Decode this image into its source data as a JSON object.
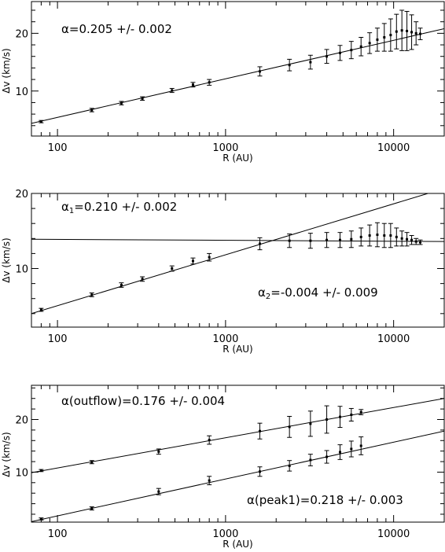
{
  "chart_data": [
    {
      "type": "scatter",
      "title": "",
      "xlabel": "R (AU)",
      "ylabel": "Δv (km/s)",
      "xscale": "log",
      "xlim": [
        70,
        20000
      ],
      "ylim": [
        2.2,
        25.5
      ],
      "xticks": [
        100,
        1000,
        10000
      ],
      "xtick_labels": [
        "100",
        "1000",
        "10000"
      ],
      "yticks": [
        10,
        20
      ],
      "ytick_labels": [
        "10",
        "20"
      ],
      "grid": false,
      "series": [
        {
          "x": [
            80,
            160,
            240,
            320,
            480,
            640,
            800,
            1600,
            2400,
            3200,
            4000,
            4800,
            5600,
            6400,
            7200,
            8000,
            8800,
            9600,
            10400,
            11200,
            12000,
            12800,
            13600,
            14400
          ],
          "y": [
            4.7,
            6.7,
            7.9,
            8.7,
            10.1,
            11.1,
            11.5,
            13.4,
            14.5,
            15.0,
            16.0,
            16.6,
            17.1,
            17.7,
            18.3,
            18.9,
            19.3,
            19.7,
            20.3,
            20.5,
            20.4,
            20.2,
            20.0,
            19.9
          ],
          "yerr": [
            0.2,
            0.3,
            0.3,
            0.3,
            0.35,
            0.4,
            0.5,
            0.8,
            1.0,
            1.2,
            1.2,
            1.3,
            1.5,
            1.6,
            1.8,
            2.0,
            2.4,
            2.8,
            3.0,
            3.5,
            3.4,
            3.0,
            2.0,
            1.0
          ]
        }
      ],
      "fit_lines": [
        {
          "x": [
            70,
            20000
          ],
          "y": [
            4.4,
            20.8
          ]
        }
      ],
      "annotations": [
        {
          "sym": "α",
          "sub": "",
          "text": "=0.205 +/- 0.002"
        }
      ]
    },
    {
      "type": "scatter",
      "title": "",
      "xlabel": "R (AU)",
      "ylabel": "Δv (km/s)",
      "xscale": "log",
      "xlim": [
        70,
        20000
      ],
      "ylim": [
        2.2,
        20
      ],
      "xticks": [
        100,
        1000,
        10000
      ],
      "xtick_labels": [
        "100",
        "1000",
        "10000"
      ],
      "yticks": [
        10,
        20
      ],
      "ytick_labels": [
        "10",
        "20"
      ],
      "grid": false,
      "series": [
        {
          "x": [
            80,
            160,
            240,
            320,
            480,
            640,
            800,
            1600,
            2400,
            3200,
            4000,
            4800,
            5600,
            6400,
            7200,
            8000,
            8800,
            9600,
            10400,
            11200,
            12000,
            12800,
            13600,
            14400
          ],
          "y": [
            4.5,
            6.5,
            7.8,
            8.6,
            10.0,
            11.0,
            11.5,
            13.3,
            13.7,
            13.7,
            13.8,
            13.8,
            13.9,
            14.2,
            14.4,
            14.5,
            14.4,
            14.4,
            14.2,
            14.0,
            13.9,
            13.8,
            13.6,
            13.5
          ],
          "yerr": [
            0.2,
            0.25,
            0.3,
            0.3,
            0.35,
            0.4,
            0.5,
            0.8,
            0.9,
            1.0,
            1.0,
            1.0,
            1.1,
            1.2,
            1.4,
            1.6,
            1.6,
            1.6,
            1.2,
            1.0,
            0.9,
            0.6,
            0.4,
            0.3
          ]
        }
      ],
      "fit_lines": [
        {
          "x": [
            70,
            16000
          ],
          "y": [
            4.0,
            20.0
          ]
        },
        {
          "x": [
            70,
            20000
          ],
          "y": [
            13.9,
            13.6
          ]
        }
      ],
      "annotations": [
        {
          "sym": "α",
          "sub": "1",
          "text": "=0.210 +/- 0.002"
        },
        {
          "sym": "α",
          "sub": "2",
          "text": "=-0.004 +/- 0.009"
        }
      ]
    },
    {
      "type": "scatter",
      "title": "",
      "xlabel": "R (AU)",
      "ylabel": "Δv (km/s)",
      "xscale": "log",
      "xlim": [
        70,
        20000
      ],
      "ylim": [
        0.5,
        26.5
      ],
      "xticks": [
        100,
        1000,
        10000
      ],
      "xtick_labels": [
        "100",
        "1000",
        "10000"
      ],
      "yticks": [
        10,
        20
      ],
      "ytick_labels": [
        "10",
        "20"
      ],
      "grid": false,
      "series": [
        {
          "name": "outflow",
          "x": [
            80,
            160,
            400,
            800,
            1600,
            2400,
            3200,
            4000,
            4800,
            5600,
            6400
          ],
          "y": [
            10.3,
            11.9,
            13.9,
            16.1,
            17.8,
            18.6,
            19.2,
            20.0,
            20.5,
            20.9,
            21.4
          ],
          "yerr": [
            0.2,
            0.3,
            0.5,
            0.8,
            1.5,
            2.0,
            2.4,
            2.6,
            2.0,
            1.2,
            0.5
          ]
        },
        {
          "name": "peak1",
          "x": [
            80,
            160,
            400,
            800,
            1600,
            2400,
            3200,
            4000,
            4800,
            5600,
            6400
          ],
          "y": [
            1.1,
            3.1,
            6.3,
            8.4,
            10.1,
            11.2,
            12.3,
            12.9,
            13.8,
            14.4,
            15.0
          ],
          "yerr": [
            0.2,
            0.3,
            0.6,
            0.8,
            0.9,
            1.0,
            1.1,
            1.2,
            1.4,
            1.5,
            1.7
          ]
        }
      ],
      "fit_lines": [
        {
          "x": [
            70,
            20000
          ],
          "y": [
            9.9,
            24.0
          ]
        },
        {
          "x": [
            70,
            20000
          ],
          "y": [
            0.6,
            17.8
          ]
        }
      ],
      "annotations": [
        {
          "sym": "α",
          "sub": "",
          "text": "(outflow)=0.176 +/- 0.004"
        },
        {
          "sym": "α",
          "sub": "",
          "text": "(peak1)=0.218 +/- 0.003"
        }
      ]
    }
  ]
}
